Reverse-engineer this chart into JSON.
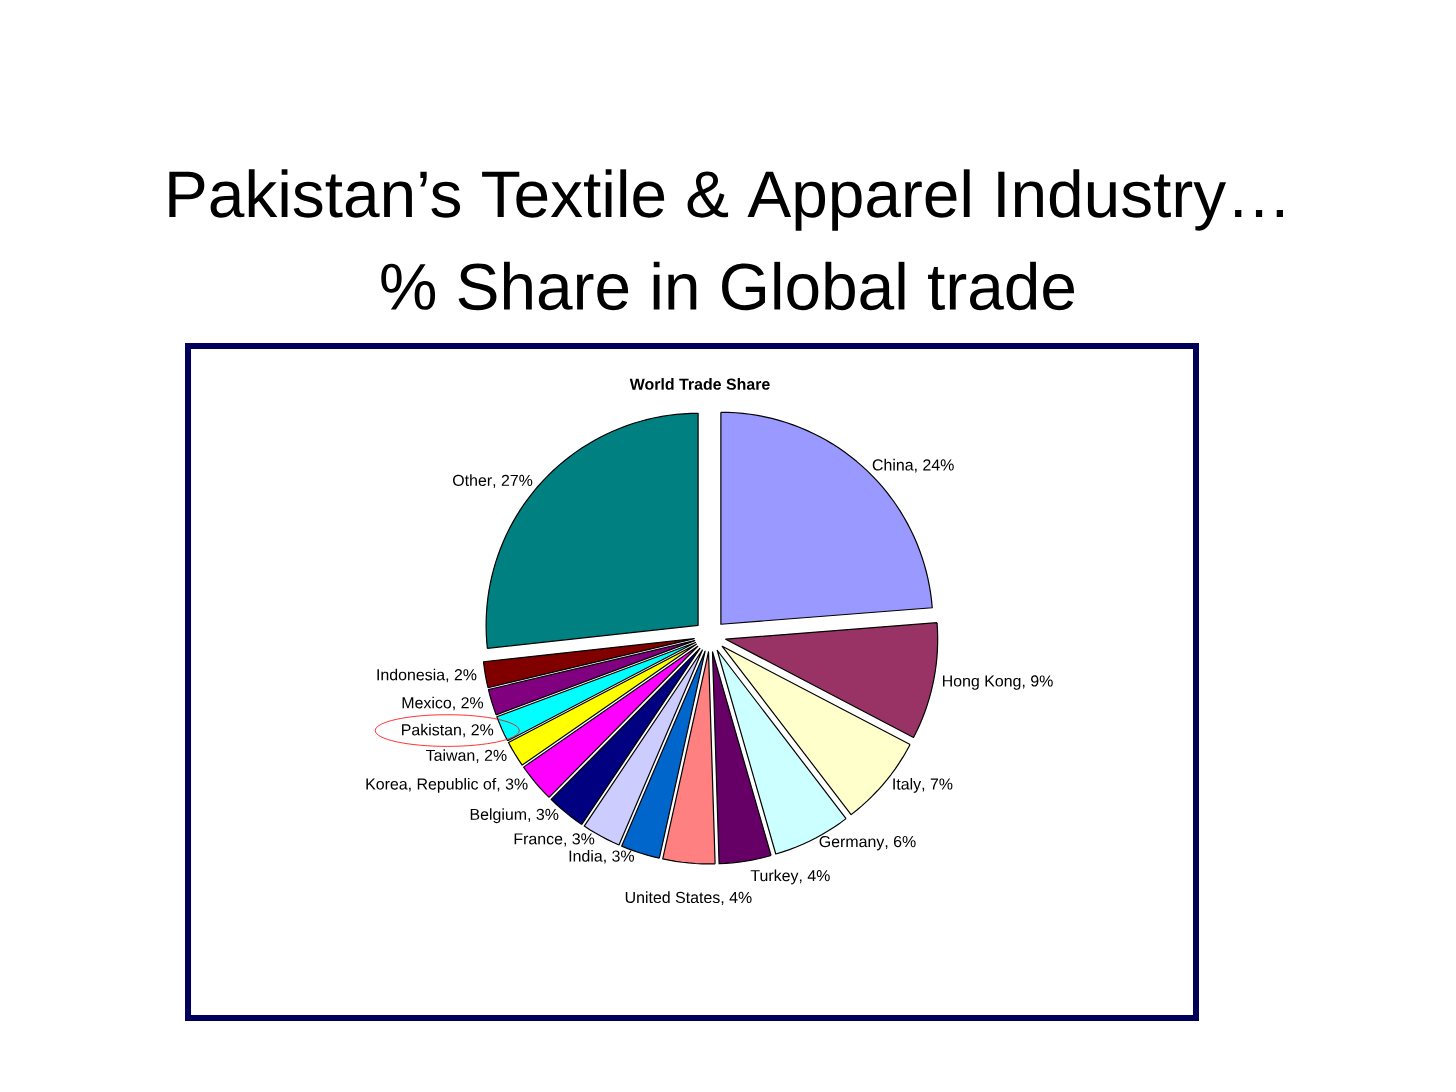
{
  "chart_data": {
    "type": "pie",
    "title": "Pakistan’s Textile & Apparel Industry…",
    "subtitle": "% Share in Global trade",
    "annotations": [
      "World Trade Share"
    ],
    "categories": [
      "China",
      "Hong Kong",
      "Italy",
      "Germany",
      "Turkey",
      "United States",
      "India",
      "France",
      "Belgium",
      "Korea, Republic of",
      "Taiwan",
      "Pakistan",
      "Mexico",
      "Indonesia",
      "Other"
    ],
    "values": [
      24,
      9,
      7,
      6,
      4,
      4,
      3,
      3,
      3,
      3,
      2,
      2,
      2,
      2,
      27
    ],
    "value_labels": [
      ", 24%",
      ", 9%",
      ", 7%",
      ", 6%",
      ", 4%",
      ", 4%",
      ", 3%",
      ", 3%",
      ", 3%",
      ", 3%",
      ", 2%",
      ", 2%",
      ", 2%",
      ", 2%",
      ", 27%"
    ],
    "colors": [
      "#9999ff",
      "#993366",
      "#ffffcc",
      "#ccffff",
      "#660066",
      "#ff8080",
      "#0066cc",
      "#ccccff",
      "#000080",
      "#ff00ff",
      "#ffff00",
      "#00ffff",
      "#800080",
      "#800000",
      "#008080"
    ]
  }
}
